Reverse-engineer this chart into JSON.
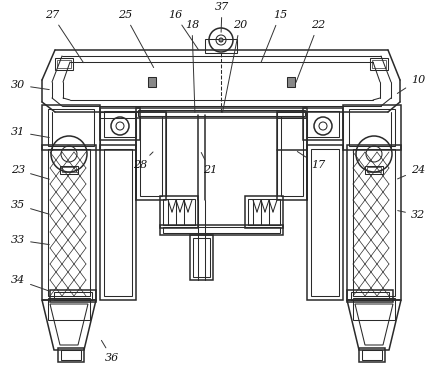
{
  "bg_color": "#ffffff",
  "line_color": "#2a2a2a",
  "label_color": "#111111",
  "figsize": [
    4.43,
    3.8
  ],
  "dpi": 100
}
